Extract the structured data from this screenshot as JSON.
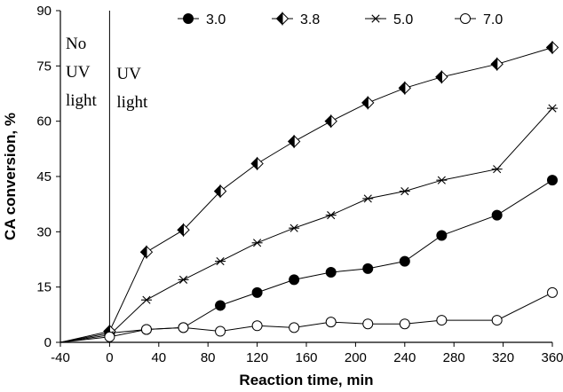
{
  "chart_data": {
    "type": "line",
    "xlabel": "Reaction time, min",
    "ylabel": "CA conversion, %",
    "xlim": [
      -40,
      360
    ],
    "ylim": [
      0,
      90
    ],
    "xticks": [
      -40,
      0,
      40,
      80,
      120,
      160,
      200,
      240,
      280,
      320,
      360
    ],
    "yticks": [
      0,
      15,
      30,
      45,
      60,
      75,
      90
    ],
    "grid": false,
    "legend_position": "top",
    "annotations": [
      {
        "lines": [
          "No",
          "UV",
          "light"
        ],
        "side": "left of x=0"
      },
      {
        "lines": [
          "UV",
          "light"
        ],
        "side": "right of x=0"
      }
    ],
    "divider_x": 0,
    "series": [
      {
        "name": "3.0",
        "marker": "filled-circle",
        "x": [
          -40,
          0,
          30,
          60,
          90,
          120,
          150,
          180,
          210,
          240,
          270,
          315,
          360
        ],
        "y": [
          0,
          2.5,
          3.5,
          4,
          10,
          13.5,
          17,
          19,
          20,
          22,
          29,
          34.5,
          44
        ]
      },
      {
        "name": "3.8",
        "marker": "half-filled-diamond",
        "x": [
          -40,
          0,
          30,
          60,
          90,
          120,
          150,
          180,
          210,
          240,
          270,
          315,
          360
        ],
        "y": [
          0,
          3,
          24.5,
          30.5,
          41,
          48.5,
          54.5,
          60,
          65,
          69,
          72,
          75.5,
          80
        ]
      },
      {
        "name": "5.0",
        "marker": "asterisk",
        "x": [
          -40,
          0,
          30,
          60,
          90,
          120,
          150,
          180,
          210,
          240,
          270,
          315,
          360
        ],
        "y": [
          0,
          2,
          11.5,
          17,
          22,
          27,
          31,
          34.5,
          39,
          41,
          44,
          47,
          63.5
        ]
      },
      {
        "name": "7.0",
        "marker": "open-circle",
        "x": [
          -40,
          0,
          30,
          60,
          90,
          120,
          150,
          180,
          210,
          240,
          270,
          315,
          360
        ],
        "y": [
          0,
          1.5,
          3.5,
          4,
          3,
          4.5,
          4,
          5.5,
          5,
          5,
          6,
          6,
          13.5
        ]
      }
    ]
  }
}
